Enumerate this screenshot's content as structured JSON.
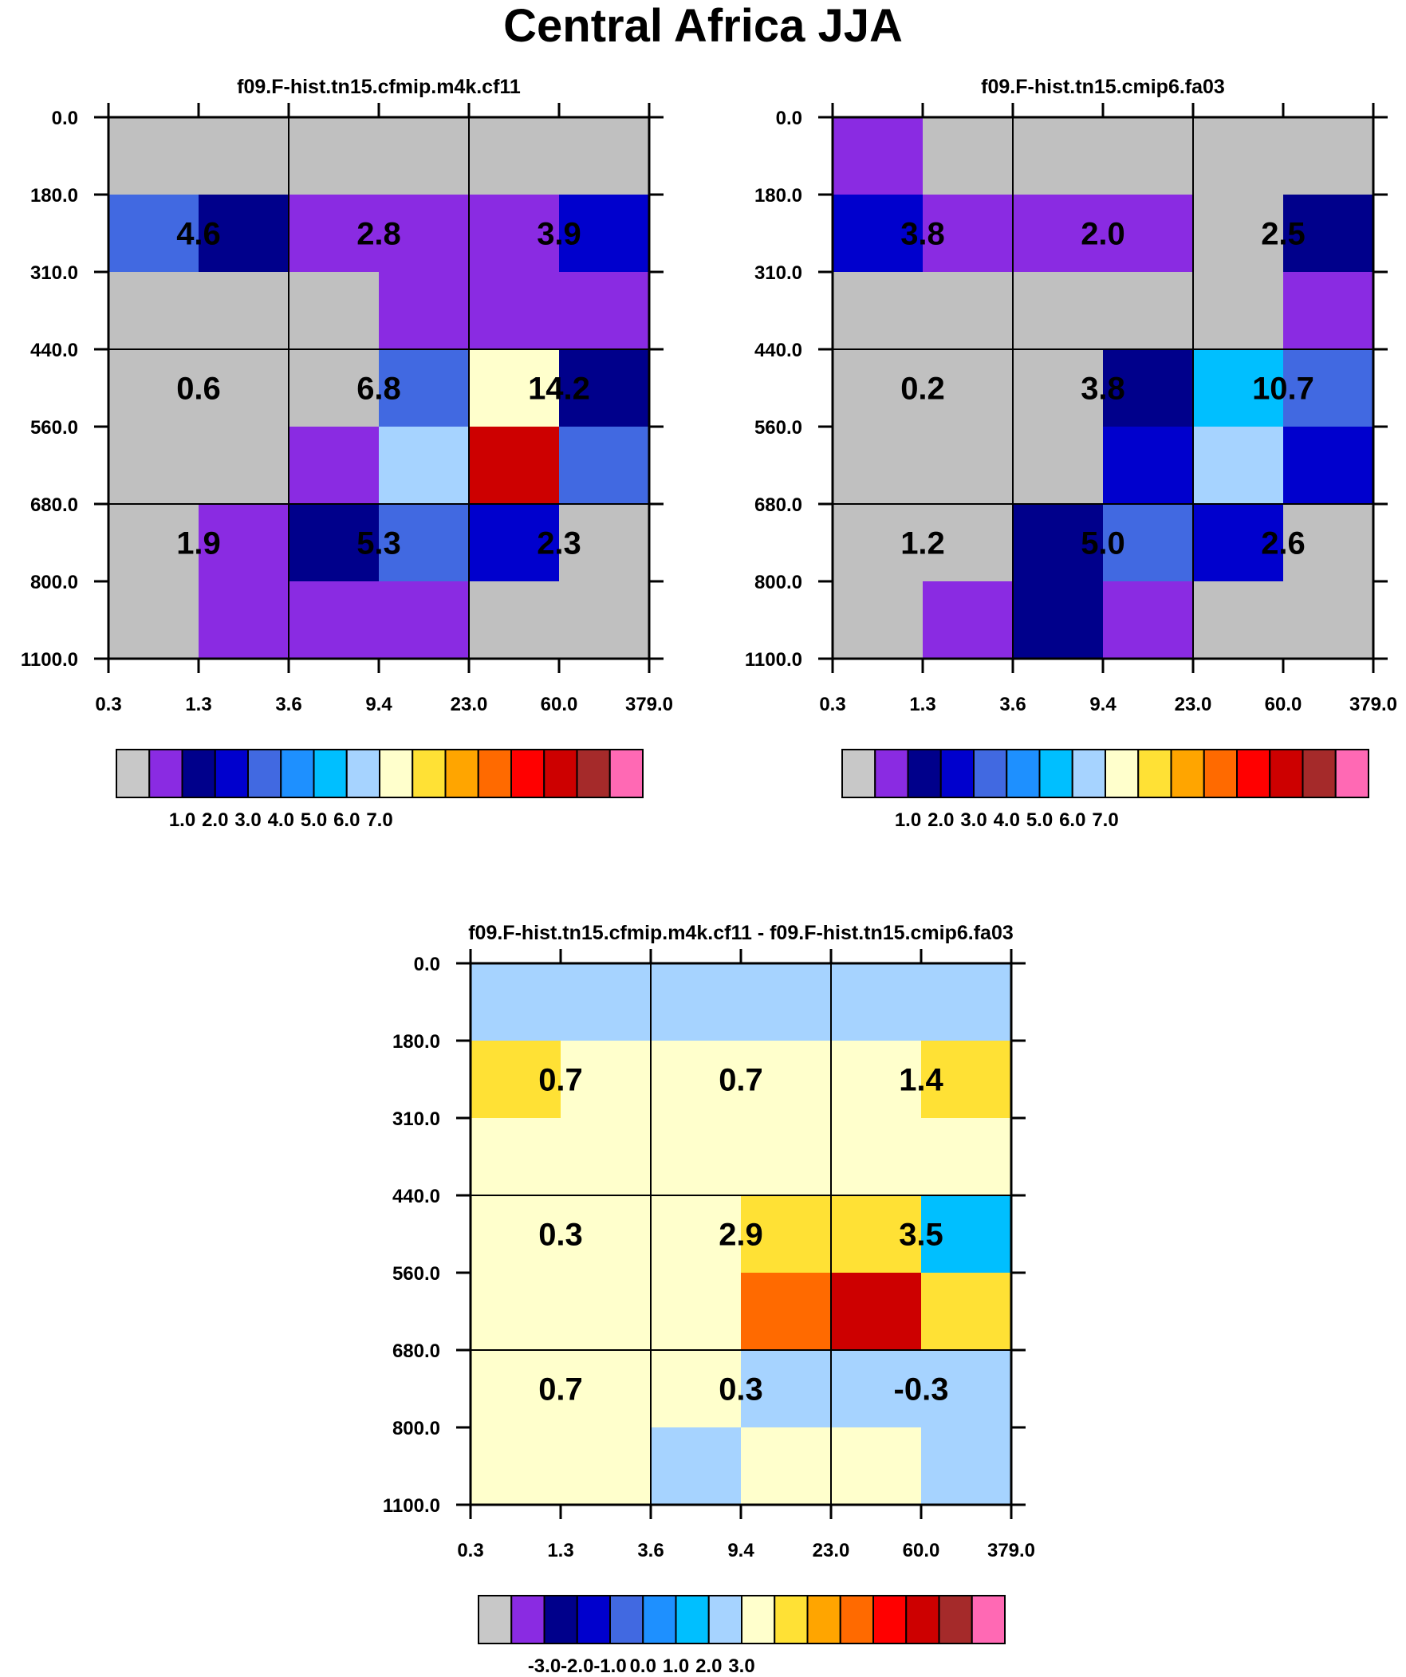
{
  "title": "Central Africa JJA",
  "chart_data": [
    {
      "type": "heatmap",
      "title": "f09.F-hist.tn15.cfmip.m4k.cf11",
      "x_ticks": [
        "0.3",
        "1.3",
        "3.6",
        "9.4",
        "23.0",
        "60.0",
        "379.0"
      ],
      "y_ticks": [
        "0.0",
        "180.0",
        "310.0",
        "440.0",
        "560.0",
        "680.0",
        "800.0",
        "1100.0"
      ],
      "cell_colors": [
        [
          "#c0c0c0",
          "#c0c0c0",
          "#c0c0c0",
          "#c0c0c0",
          "#c0c0c0",
          "#c0c0c0"
        ],
        [
          "#4169e1",
          "#00008b",
          "#8a2be2",
          "#8a2be2",
          "#8a2be2",
          "#0000cd"
        ],
        [
          "#c0c0c0",
          "#c0c0c0",
          "#c0c0c0",
          "#8a2be2",
          "#8a2be2",
          "#8a2be2"
        ],
        [
          "#c0c0c0",
          "#c0c0c0",
          "#c0c0c0",
          "#4169e1",
          "#ffffcc",
          "#00008b"
        ],
        [
          "#c0c0c0",
          "#c0c0c0",
          "#8a2be2",
          "#a6d3ff",
          "#cd0000",
          "#4169e1"
        ],
        [
          "#c0c0c0",
          "#8a2be2",
          "#00008b",
          "#4169e1",
          "#0000cd",
          "#c0c0c0"
        ],
        [
          "#c0c0c0",
          "#8a2be2",
          "#8a2be2",
          "#8a2be2",
          "#c0c0c0",
          "#c0c0c0"
        ]
      ],
      "box_values": [
        [
          "4.6",
          "2.8",
          "3.9"
        ],
        [
          "0.6",
          "6.8",
          "14.2"
        ],
        [
          "1.9",
          "5.3",
          "2.3"
        ]
      ],
      "colorbar_labels": [
        "1.0",
        "2.0",
        "3.0",
        "4.0",
        "5.0",
        "6.0",
        "7.0"
      ]
    },
    {
      "type": "heatmap",
      "title": "f09.F-hist.tn15.cmip6.fa03",
      "x_ticks": [
        "0.3",
        "1.3",
        "3.6",
        "9.4",
        "23.0",
        "60.0",
        "379.0"
      ],
      "y_ticks": [
        "0.0",
        "180.0",
        "310.0",
        "440.0",
        "560.0",
        "680.0",
        "800.0",
        "1100.0"
      ],
      "cell_colors": [
        [
          "#8a2be2",
          "#c0c0c0",
          "#c0c0c0",
          "#c0c0c0",
          "#c0c0c0",
          "#c0c0c0"
        ],
        [
          "#0000cd",
          "#8a2be2",
          "#8a2be2",
          "#8a2be2",
          "#c0c0c0",
          "#00008b"
        ],
        [
          "#c0c0c0",
          "#c0c0c0",
          "#c0c0c0",
          "#c0c0c0",
          "#c0c0c0",
          "#8a2be2"
        ],
        [
          "#c0c0c0",
          "#c0c0c0",
          "#c0c0c0",
          "#00008b",
          "#00bfff",
          "#4169e1"
        ],
        [
          "#c0c0c0",
          "#c0c0c0",
          "#c0c0c0",
          "#0000cd",
          "#a6d3ff",
          "#0000cd"
        ],
        [
          "#c0c0c0",
          "#c0c0c0",
          "#00008b",
          "#4169e1",
          "#0000cd",
          "#c0c0c0"
        ],
        [
          "#c0c0c0",
          "#8a2be2",
          "#00008b",
          "#8a2be2",
          "#c0c0c0",
          "#c0c0c0"
        ]
      ],
      "box_values": [
        [
          "3.8",
          "2.0",
          "2.5"
        ],
        [
          "0.2",
          "3.8",
          "10.7"
        ],
        [
          "1.2",
          "5.0",
          "2.6"
        ]
      ],
      "colorbar_labels": [
        "1.0",
        "2.0",
        "3.0",
        "4.0",
        "5.0",
        "6.0",
        "7.0"
      ]
    },
    {
      "type": "heatmap",
      "title": "f09.F-hist.tn15.cfmip.m4k.cf11 - f09.F-hist.tn15.cmip6.fa03",
      "x_ticks": [
        "0.3",
        "1.3",
        "3.6",
        "9.4",
        "23.0",
        "60.0",
        "379.0"
      ],
      "y_ticks": [
        "0.0",
        "180.0",
        "310.0",
        "440.0",
        "560.0",
        "680.0",
        "800.0",
        "1100.0"
      ],
      "cell_colors": [
        [
          "#a6d3ff",
          "#a6d3ff",
          "#a6d3ff",
          "#a6d3ff",
          "#a6d3ff",
          "#a6d3ff"
        ],
        [
          "#ffe135",
          "#ffffcc",
          "#ffffcc",
          "#ffffcc",
          "#ffffcc",
          "#ffe135"
        ],
        [
          "#ffffcc",
          "#ffffcc",
          "#ffffcc",
          "#ffffcc",
          "#ffffcc",
          "#ffffcc"
        ],
        [
          "#ffffcc",
          "#ffffcc",
          "#ffffcc",
          "#ffe135",
          "#ffe135",
          "#00bfff"
        ],
        [
          "#ffffcc",
          "#ffffcc",
          "#ffffcc",
          "#ff6a00",
          "#cd0000",
          "#ffe135"
        ],
        [
          "#ffffcc",
          "#ffffcc",
          "#ffffcc",
          "#a6d3ff",
          "#a6d3ff",
          "#a6d3ff"
        ],
        [
          "#ffffcc",
          "#ffffcc",
          "#a6d3ff",
          "#ffffcc",
          "#ffffcc",
          "#a6d3ff"
        ]
      ],
      "box_values": [
        [
          "0.7",
          "0.7",
          "1.4"
        ],
        [
          "0.3",
          "2.9",
          "3.5"
        ],
        [
          "0.7",
          "0.3",
          "-0.3"
        ]
      ],
      "colorbar_labels": [
        "-3.0",
        "-2.0",
        "-1.0",
        "0.0",
        "1.0",
        "2.0",
        "3.0"
      ]
    }
  ],
  "colorbar_colors": [
    "#c8c8c8",
    "#8a2be2",
    "#00008b",
    "#0000cd",
    "#4169e1",
    "#1e90ff",
    "#00bfff",
    "#a6d3ff",
    "#ffffcc",
    "#ffe135",
    "#ffa500",
    "#ff6a00",
    "#ff0000",
    "#cd0000",
    "#a52a2a",
    "#ff69b4"
  ]
}
